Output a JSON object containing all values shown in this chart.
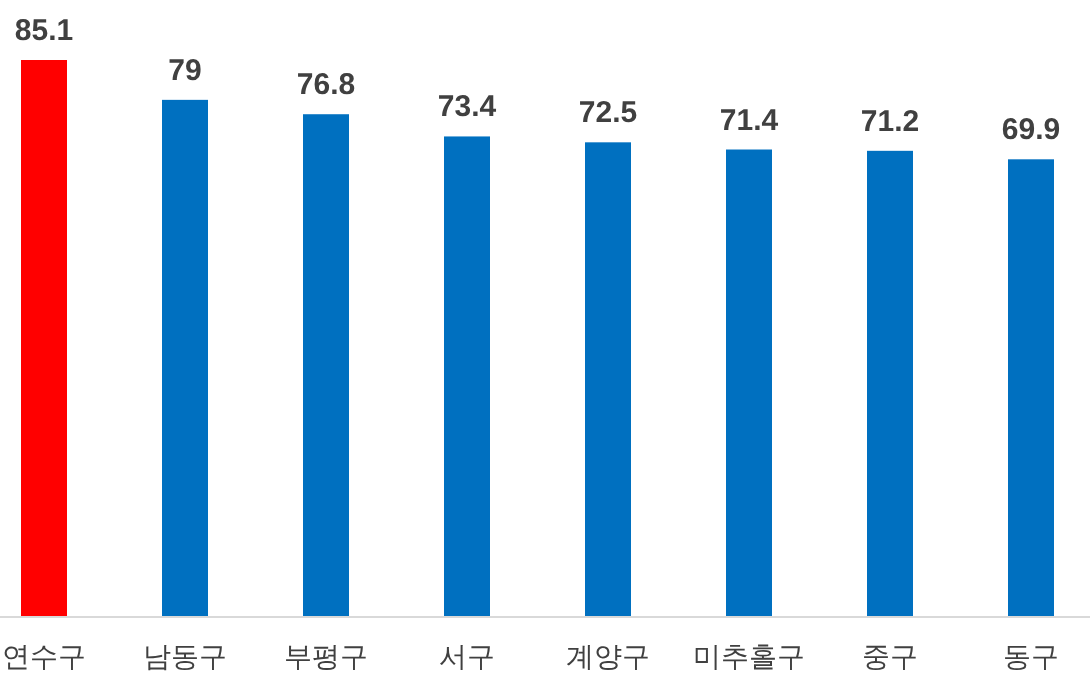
{
  "chart_data": {
    "type": "bar",
    "categories": [
      "연수구",
      "남동구",
      "부평구",
      "서구",
      "계양구",
      "미추홀구",
      "중구",
      "동구"
    ],
    "values": [
      85.1,
      79,
      76.8,
      73.4,
      72.5,
      71.4,
      71.2,
      69.9
    ],
    "colors": [
      "#ff0000",
      "#0070c0",
      "#0070c0",
      "#0070c0",
      "#0070c0",
      "#0070c0",
      "#0070c0",
      "#0070c0"
    ],
    "data_labels": true
  }
}
